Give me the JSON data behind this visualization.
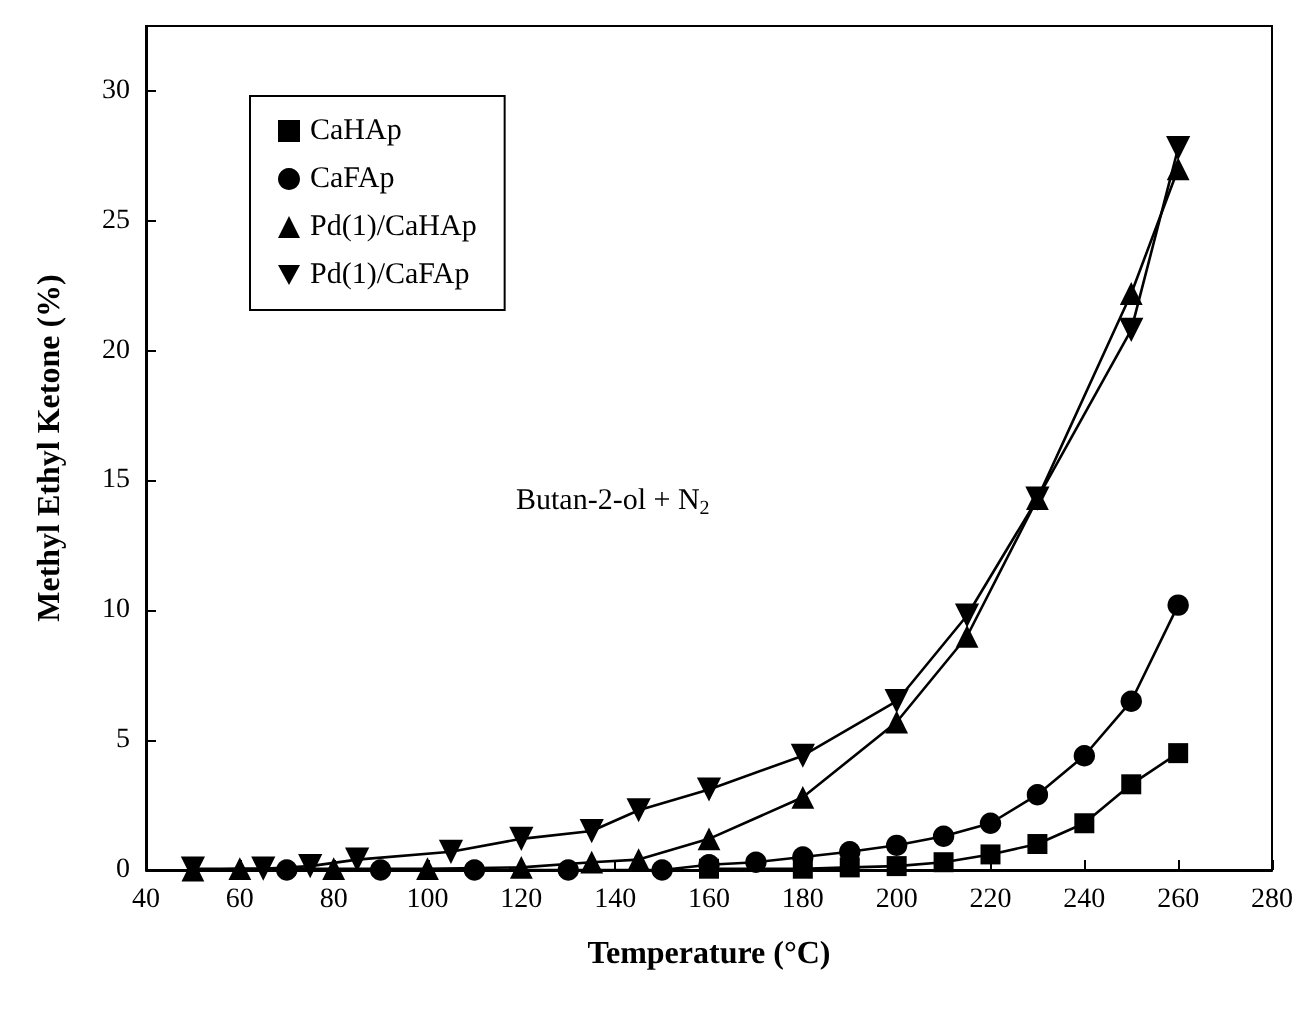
{
  "chart_data": {
    "type": "line",
    "xlabel": "Temperature (°C)",
    "ylabel": "Methyl Ethyl Ketone (%)",
    "xlim": [
      40,
      280
    ],
    "xticks": [
      40,
      60,
      80,
      100,
      120,
      140,
      160,
      180,
      200,
      220,
      240,
      260,
      280
    ],
    "ylim": [
      0,
      32.5
    ],
    "yticks": [
      0,
      5,
      10,
      15,
      20,
      25,
      30
    ],
    "grid": false,
    "legend": "top left",
    "line_style": "solid",
    "annotations": [
      "Butan-2-ol + N$_{2}$"
    ],
    "series": [
      {
        "name": "CaHAp",
        "color": "#000000",
        "marker": "square",
        "x": [
          160,
          180,
          190,
          200,
          210,
          220,
          230,
          240,
          250,
          260
        ],
        "values": [
          0.05,
          0.05,
          0.1,
          0.15,
          0.3,
          0.6,
          1.0,
          1.8,
          3.3,
          4.5
        ]
      },
      {
        "name": "CaFAp",
        "color": "#000000",
        "marker": "circle",
        "x": [
          70,
          90,
          110,
          130,
          150,
          160,
          170,
          180,
          190,
          200,
          210,
          220,
          230,
          240,
          250,
          260
        ],
        "values": [
          0,
          0,
          0,
          0,
          0,
          0.2,
          0.3,
          0.5,
          0.7,
          0.95,
          1.3,
          1.8,
          2.9,
          4.4,
          6.5,
          10.2
        ]
      },
      {
        "name": "Pd(1)/CaHAp",
        "color": "#000000",
        "marker": "triangle",
        "x": [
          50,
          60,
          80,
          100,
          120,
          135,
          145,
          160,
          180,
          200,
          215,
          230,
          250,
          260
        ],
        "values": [
          0,
          0.05,
          0.05,
          0.05,
          0.1,
          0.3,
          0.4,
          1.2,
          2.8,
          5.7,
          9.0,
          14.3,
          22.2,
          27.0
        ]
      },
      {
        "name": "Pd(1)/CaFAp",
        "color": "#000000",
        "marker": "triangle-down",
        "x": [
          50,
          65,
          75,
          85,
          105,
          120,
          135,
          145,
          160,
          180,
          200,
          215,
          230,
          250,
          260
        ],
        "values": [
          0.05,
          0.05,
          0.15,
          0.4,
          0.7,
          1.2,
          1.5,
          2.3,
          3.1,
          4.4,
          6.5,
          9.8,
          14.3,
          20.8,
          27.8
        ]
      }
    ]
  }
}
